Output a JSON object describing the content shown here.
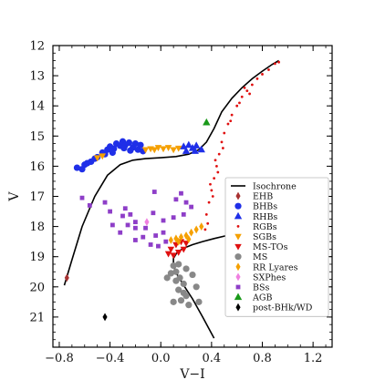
{
  "chart_data": {
    "type": "scatter",
    "title": "",
    "xlabel": "V−I",
    "ylabel": "V",
    "xlim": [
      -0.85,
      1.35
    ],
    "ylim": [
      22.0,
      12.0
    ],
    "y_inverted": true,
    "x_ticks": [
      -0.8,
      -0.4,
      0.0,
      0.4,
      0.8,
      1.2
    ],
    "x_tick_labels": [
      "−0.8",
      "−0.4",
      "0.0",
      "0.4",
      "0.8",
      "1.2"
    ],
    "y_ticks": [
      12,
      13,
      14,
      15,
      16,
      17,
      18,
      19,
      20,
      21
    ],
    "y_tick_labels": [
      "12",
      "13",
      "14",
      "15",
      "16",
      "17",
      "18",
      "19",
      "20",
      "21"
    ],
    "grid": false,
    "legend_position": "right",
    "isochrone": {
      "name": "Isochrone",
      "color": "#000000",
      "x": [
        -0.76,
        -0.7,
        -0.62,
        -0.52,
        -0.42,
        -0.32,
        -0.22,
        -0.12,
        0.0,
        0.12,
        0.22,
        0.3,
        0.36,
        0.42,
        0.48,
        0.56,
        0.64,
        0.72,
        0.8,
        0.88,
        0.93
      ],
      "y": [
        19.95,
        19.1,
        18.0,
        17.0,
        16.3,
        15.95,
        15.8,
        15.75,
        15.72,
        15.68,
        15.6,
        15.45,
        15.2,
        14.75,
        14.2,
        13.75,
        13.4,
        13.1,
        12.85,
        12.62,
        12.5
      ]
    },
    "ms_isochrone": {
      "x": [
        0.52,
        0.42,
        0.33,
        0.25,
        0.18,
        0.13,
        0.1,
        0.1,
        0.13,
        0.18,
        0.25,
        0.33,
        0.42
      ],
      "y": [
        18.3,
        18.4,
        18.5,
        18.6,
        18.72,
        18.85,
        19.05,
        19.3,
        19.6,
        19.95,
        20.4,
        21.0,
        21.7
      ]
    },
    "series": [
      {
        "name": "EHB",
        "color": "#a83232",
        "marker": "diamond",
        "points": [
          [
            -0.74,
            19.7
          ]
        ]
      },
      {
        "name": "BHBs",
        "color": "#1f2fe8",
        "marker": "circle",
        "points": [
          [
            -0.66,
            16.05
          ],
          [
            -0.6,
            15.95
          ],
          [
            -0.55,
            15.85
          ],
          [
            -0.5,
            15.7
          ],
          [
            -0.46,
            15.55
          ],
          [
            -0.42,
            15.45
          ],
          [
            -0.4,
            15.35
          ],
          [
            -0.37,
            15.42
          ],
          [
            -0.35,
            15.25
          ],
          [
            -0.32,
            15.32
          ],
          [
            -0.3,
            15.18
          ],
          [
            -0.28,
            15.3
          ],
          [
            -0.25,
            15.22
          ],
          [
            -0.22,
            15.38
          ],
          [
            -0.2,
            15.25
          ],
          [
            -0.18,
            15.45
          ],
          [
            -0.16,
            15.3
          ],
          [
            -0.14,
            15.5
          ],
          [
            -0.44,
            15.6
          ],
          [
            -0.52,
            15.75
          ],
          [
            -0.38,
            15.55
          ],
          [
            -0.24,
            15.48
          ],
          [
            -0.29,
            15.4
          ],
          [
            -0.58,
            15.9
          ],
          [
            -0.62,
            16.1
          ]
        ]
      },
      {
        "name": "RHBs",
        "color": "#1f2fe8",
        "marker": "triangle-up",
        "points": [
          [
            0.18,
            15.35
          ],
          [
            0.22,
            15.3
          ],
          [
            0.25,
            15.4
          ],
          [
            0.28,
            15.32
          ],
          [
            0.32,
            15.45
          ],
          [
            0.2,
            15.5
          ],
          [
            0.27,
            15.5
          ]
        ]
      },
      {
        "name": "RGBs",
        "color": "#e01010",
        "marker": "point",
        "points": [
          [
            0.36,
            17.6
          ],
          [
            0.38,
            17.2
          ],
          [
            0.4,
            16.8
          ],
          [
            0.42,
            16.4
          ],
          [
            0.44,
            16.0
          ],
          [
            0.46,
            15.6
          ],
          [
            0.48,
            15.2
          ],
          [
            0.5,
            14.9
          ],
          [
            0.53,
            14.6
          ],
          [
            0.56,
            14.3
          ],
          [
            0.6,
            14.0
          ],
          [
            0.64,
            13.7
          ],
          [
            0.68,
            13.5
          ],
          [
            0.72,
            13.3
          ],
          [
            0.76,
            13.1
          ],
          [
            0.8,
            12.95
          ],
          [
            0.85,
            12.8
          ],
          [
            0.9,
            12.6
          ],
          [
            0.93,
            12.55
          ],
          [
            0.37,
            17.9
          ],
          [
            0.35,
            18.1
          ],
          [
            0.41,
            17.0
          ],
          [
            0.45,
            16.2
          ],
          [
            0.49,
            15.4
          ],
          [
            0.55,
            14.5
          ],
          [
            0.62,
            13.9
          ],
          [
            0.7,
            13.6
          ],
          [
            0.66,
            13.4
          ],
          [
            0.39,
            16.6
          ],
          [
            0.43,
            15.8
          ]
        ]
      },
      {
        "name": "SGBs",
        "color": "#f5a000",
        "marker": "triangle-down",
        "points": [
          [
            -0.5,
            15.72
          ],
          [
            -0.46,
            15.66
          ],
          [
            -0.12,
            15.45
          ],
          [
            -0.08,
            15.42
          ],
          [
            -0.05,
            15.45
          ],
          [
            -0.02,
            15.38
          ],
          [
            0.02,
            15.42
          ],
          [
            0.06,
            15.38
          ],
          [
            0.1,
            15.45
          ],
          [
            0.14,
            15.4
          ]
        ]
      },
      {
        "name": "MS-TOs",
        "color": "#e01010",
        "marker": "triangle-down",
        "points": [
          [
            0.08,
            18.75
          ],
          [
            0.1,
            18.95
          ],
          [
            0.12,
            18.6
          ],
          [
            0.14,
            18.85
          ],
          [
            0.16,
            18.5
          ],
          [
            0.06,
            18.9
          ],
          [
            0.18,
            18.75
          ],
          [
            0.2,
            18.55
          ]
        ]
      },
      {
        "name": "MS",
        "color": "#888888",
        "marker": "circle",
        "points": [
          [
            0.1,
            19.3
          ],
          [
            0.12,
            19.5
          ],
          [
            0.15,
            19.7
          ],
          [
            0.18,
            19.9
          ],
          [
            0.14,
            20.1
          ],
          [
            0.2,
            20.3
          ],
          [
            0.16,
            20.45
          ],
          [
            0.22,
            20.6
          ],
          [
            0.12,
            19.8
          ],
          [
            0.25,
            19.6
          ],
          [
            0.08,
            19.55
          ],
          [
            0.18,
            20.2
          ],
          [
            0.28,
            20.0
          ],
          [
            0.1,
            20.5
          ],
          [
            0.2,
            19.4
          ],
          [
            0.05,
            19.7
          ],
          [
            0.3,
            20.5
          ],
          [
            0.14,
            19.25
          ]
        ]
      },
      {
        "name": "RR Lyares",
        "color": "#f5a000",
        "marker": "diamond",
        "points": [
          [
            0.08,
            18.45
          ],
          [
            0.12,
            18.4
          ],
          [
            0.16,
            18.35
          ],
          [
            0.2,
            18.3
          ],
          [
            0.24,
            18.2
          ],
          [
            0.28,
            18.1
          ],
          [
            0.32,
            18.0
          ],
          [
            0.14,
            18.5
          ],
          [
            0.22,
            18.42
          ]
        ]
      },
      {
        "name": "SXPhes",
        "color": "#f080e0",
        "marker": "diamond",
        "points": [
          [
            -0.11,
            17.85
          ]
        ]
      },
      {
        "name": "BSs",
        "color": "#8e3ec8",
        "marker": "square",
        "points": [
          [
            -0.62,
            17.05
          ],
          [
            -0.56,
            17.3
          ],
          [
            -0.44,
            17.2
          ],
          [
            -0.4,
            17.5
          ],
          [
            -0.3,
            17.65
          ],
          [
            -0.24,
            17.6
          ],
          [
            -0.2,
            17.85
          ],
          [
            -0.26,
            17.95
          ],
          [
            -0.2,
            18.05
          ],
          [
            -0.32,
            18.2
          ],
          [
            -0.14,
            18.35
          ],
          [
            -0.12,
            18.05
          ],
          [
            -0.06,
            17.55
          ],
          [
            0.02,
            17.8
          ],
          [
            0.1,
            17.7
          ],
          [
            0.18,
            17.6
          ],
          [
            0.24,
            17.35
          ],
          [
            0.02,
            18.2
          ],
          [
            -0.04,
            18.3
          ],
          [
            -0.2,
            18.45
          ],
          [
            -0.08,
            18.6
          ],
          [
            -0.02,
            18.65
          ],
          [
            0.04,
            18.5
          ],
          [
            0.16,
            16.9
          ],
          [
            0.2,
            17.2
          ],
          [
            -0.05,
            16.85
          ],
          [
            0.12,
            17.1
          ],
          [
            -0.38,
            17.95
          ],
          [
            -0.28,
            17.4
          ]
        ]
      },
      {
        "name": "AGB",
        "color": "#1a9a1a",
        "marker": "triangle-up",
        "points": [
          [
            0.36,
            14.55
          ]
        ]
      },
      {
        "name": "post-BHk/WD",
        "color": "#000000",
        "marker": "diamond",
        "points": [
          [
            -0.44,
            21.0
          ]
        ]
      }
    ],
    "legend": [
      "Isochrone",
      "EHB",
      "BHBs",
      "RHBs",
      "RGBs",
      "SGBs",
      "MS-TOs",
      "MS",
      "RR Lyares",
      "SXPhes",
      "BSs",
      "AGB",
      "post-BHk/WD"
    ]
  }
}
